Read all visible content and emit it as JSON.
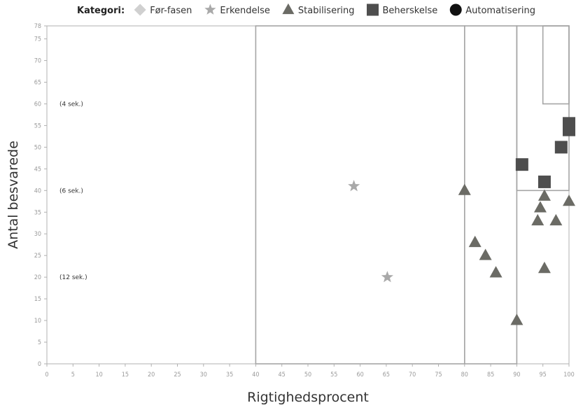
{
  "chart_data": {
    "type": "scatter",
    "xlabel": "Rigtighedsprocent",
    "ylabel": "Antal besvarede",
    "xlim": [
      0,
      100
    ],
    "ylim": [
      0,
      78
    ],
    "x_ticks": [
      0,
      5,
      10,
      15,
      20,
      25,
      30,
      35,
      40,
      45,
      50,
      55,
      60,
      65,
      70,
      75,
      80,
      85,
      90,
      95,
      100
    ],
    "y_ticks": [
      0,
      5,
      10,
      15,
      20,
      25,
      30,
      35,
      40,
      45,
      50,
      55,
      60,
      65,
      70,
      75,
      78
    ],
    "grid": false,
    "legend_title": "Kategori:",
    "legend_position": "top",
    "series": [
      {
        "name": "Før-fasen",
        "marker": "diamond",
        "color": "#d0d0d0",
        "points": []
      },
      {
        "name": "Erkendelse",
        "marker": "star",
        "color": "#a9a9a9",
        "points": [
          [
            58.8,
            41
          ],
          [
            65.2,
            20
          ]
        ]
      },
      {
        "name": "Stabilisering",
        "marker": "triangle",
        "color": "#6b6b65",
        "points": [
          [
            80,
            40
          ],
          [
            82,
            28
          ],
          [
            84,
            25
          ],
          [
            86,
            21
          ],
          [
            90,
            10
          ],
          [
            94,
            33
          ],
          [
            94.5,
            36
          ],
          [
            95.3,
            22
          ],
          [
            95.3,
            38.7
          ],
          [
            97.5,
            33
          ],
          [
            100,
            37.5
          ]
        ]
      },
      {
        "name": "Beherskelse",
        "marker": "square",
        "color": "#4e4e4e",
        "points": [
          [
            91,
            46
          ],
          [
            95.3,
            42
          ],
          [
            98.5,
            50
          ],
          [
            100,
            54
          ],
          [
            100,
            55.5
          ]
        ]
      },
      {
        "name": "Automatisering",
        "marker": "circle",
        "color": "#111111",
        "points": []
      }
    ],
    "annotations": [
      {
        "text": "(4 sek.)",
        "y": 60
      },
      {
        "text": "(6 sek.)",
        "y": 40
      },
      {
        "text": "(12 sek.)",
        "y": 20
      }
    ],
    "boundary_regions": [
      {
        "x0": 40,
        "x1": 80,
        "y0": 0,
        "y1": 78
      },
      {
        "x0": 80,
        "x1": 90,
        "y0": 0,
        "y1": 78
      },
      {
        "x0": 90,
        "x1": 100,
        "y0": 40,
        "y1": 78
      },
      {
        "x0": 95,
        "x1": 100,
        "y0": 60,
        "y1": 78
      }
    ]
  }
}
